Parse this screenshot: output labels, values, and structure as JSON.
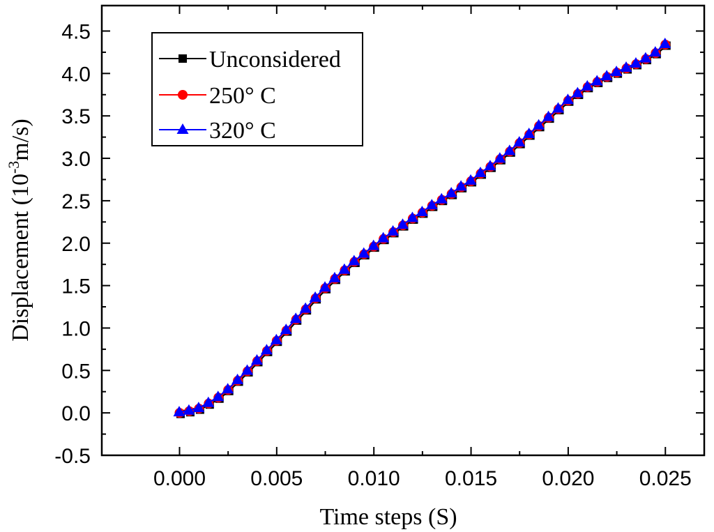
{
  "chart_data": {
    "type": "line",
    "title": "",
    "xlabel": "Time steps (S)",
    "ylabel": "Displacement (10-3m/s)",
    "ylabel_parts": {
      "base": "Displacement (10",
      "sup": "-3",
      "rest": "m/s)"
    },
    "xlim": [
      -0.004,
      0.027
    ],
    "ylim": [
      -0.5,
      4.8
    ],
    "xticks": [
      0.0,
      0.005,
      0.01,
      0.015,
      0.02,
      0.025
    ],
    "xtick_labels": [
      "0.000",
      "0.005",
      "0.010",
      "0.015",
      "0.020",
      "0.025"
    ],
    "yticks": [
      -0.5,
      0.0,
      0.5,
      1.0,
      1.5,
      2.0,
      2.5,
      3.0,
      3.5,
      4.0,
      4.5
    ],
    "ytick_labels": [
      "-0.5",
      "0.0",
      "0.5",
      "1.0",
      "1.5",
      "2.0",
      "2.5",
      "3.0",
      "3.5",
      "4.0",
      "4.5"
    ],
    "grid": false,
    "legend_position": "top-left",
    "x": [
      0.0,
      0.0005,
      0.001,
      0.0015,
      0.002,
      0.0025,
      0.003,
      0.0035,
      0.004,
      0.0045,
      0.005,
      0.0055,
      0.006,
      0.0065,
      0.007,
      0.0075,
      0.008,
      0.0085,
      0.009,
      0.0095,
      0.01,
      0.0105,
      0.011,
      0.0115,
      0.012,
      0.0125,
      0.013,
      0.0135,
      0.014,
      0.0145,
      0.015,
      0.0155,
      0.016,
      0.0165,
      0.017,
      0.0175,
      0.018,
      0.0185,
      0.019,
      0.0195,
      0.02,
      0.0205,
      0.021,
      0.0215,
      0.022,
      0.0225,
      0.023,
      0.0235,
      0.024,
      0.0245,
      0.025
    ],
    "series": [
      {
        "name": "Unconsidered",
        "color": "#000000",
        "marker": "square",
        "values": [
          0.0,
          0.02,
          0.05,
          0.11,
          0.18,
          0.27,
          0.38,
          0.49,
          0.61,
          0.73,
          0.85,
          0.97,
          1.1,
          1.22,
          1.35,
          1.47,
          1.58,
          1.68,
          1.78,
          1.87,
          1.96,
          2.05,
          2.13,
          2.21,
          2.29,
          2.36,
          2.44,
          2.51,
          2.58,
          2.66,
          2.73,
          2.82,
          2.9,
          2.99,
          3.08,
          3.18,
          3.28,
          3.38,
          3.48,
          3.58,
          3.68,
          3.76,
          3.84,
          3.9,
          3.96,
          4.01,
          4.06,
          4.11,
          4.17,
          4.24,
          4.34
        ]
      },
      {
        "name": "250° C",
        "color": "#ff0000",
        "marker": "circle",
        "values": [
          0.0,
          0.02,
          0.05,
          0.11,
          0.18,
          0.27,
          0.38,
          0.49,
          0.61,
          0.73,
          0.85,
          0.97,
          1.1,
          1.22,
          1.35,
          1.47,
          1.58,
          1.68,
          1.78,
          1.87,
          1.96,
          2.05,
          2.13,
          2.21,
          2.29,
          2.36,
          2.44,
          2.51,
          2.58,
          2.66,
          2.73,
          2.82,
          2.9,
          2.99,
          3.08,
          3.18,
          3.28,
          3.38,
          3.48,
          3.58,
          3.68,
          3.76,
          3.84,
          3.9,
          3.96,
          4.01,
          4.06,
          4.11,
          4.17,
          4.24,
          4.34
        ]
      },
      {
        "name": "320° C",
        "color": "#0000ff",
        "marker": "triangle",
        "values": [
          0.0,
          0.02,
          0.05,
          0.11,
          0.18,
          0.27,
          0.38,
          0.49,
          0.61,
          0.73,
          0.85,
          0.97,
          1.1,
          1.22,
          1.35,
          1.47,
          1.58,
          1.68,
          1.78,
          1.87,
          1.96,
          2.05,
          2.13,
          2.21,
          2.29,
          2.36,
          2.44,
          2.51,
          2.58,
          2.66,
          2.73,
          2.82,
          2.9,
          2.99,
          3.08,
          3.18,
          3.28,
          3.38,
          3.48,
          3.58,
          3.68,
          3.76,
          3.84,
          3.9,
          3.96,
          4.01,
          4.06,
          4.11,
          4.17,
          4.24,
          4.34
        ]
      }
    ]
  }
}
